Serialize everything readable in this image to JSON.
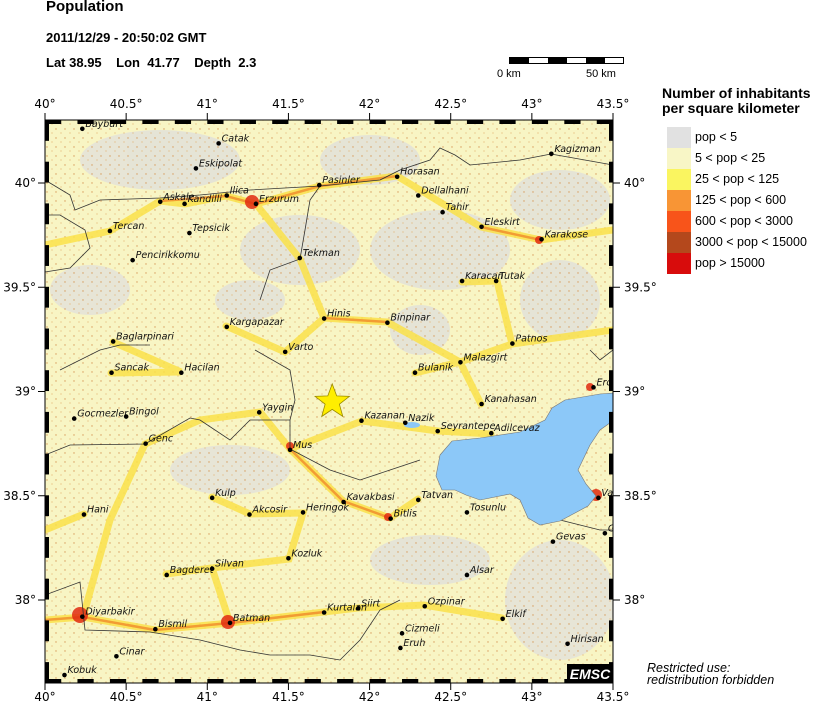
{
  "header": {
    "title": "Population",
    "datetime": "2011/12/29 - 20:50:02 GMT",
    "lat_label": "Lat",
    "lat": "38.95",
    "lon_label": "Lon",
    "lon": "41.77",
    "depth_label": "Depth",
    "depth": "2.3"
  },
  "scale_bar": {
    "start_label": "0 km",
    "end_label": "50 km"
  },
  "map": {
    "lon_range": [
      40,
      43.5
    ],
    "lat_range": [
      37.6,
      40.3
    ],
    "lon_ticks": [
      {
        "value": 40,
        "label": "40°"
      },
      {
        "value": 40.5,
        "label": "40.5°"
      },
      {
        "value": 41,
        "label": "41°"
      },
      {
        "value": 41.5,
        "label": "41.5°"
      },
      {
        "value": 42,
        "label": "42°"
      },
      {
        "value": 42.5,
        "label": "42.5°"
      },
      {
        "value": 43,
        "label": "43°"
      },
      {
        "value": 43.5,
        "label": "43.5°"
      }
    ],
    "lat_ticks": [
      {
        "value": 40,
        "label": "40°"
      },
      {
        "value": 39.5,
        "label": "39.5°"
      },
      {
        "value": 39,
        "label": "39°"
      },
      {
        "value": 38.5,
        "label": "38.5°"
      },
      {
        "value": 38,
        "label": "38°"
      }
    ],
    "epicenter": {
      "lon": 41.77,
      "lat": 38.95,
      "icon": "star-icon",
      "color": "#ffee00"
    },
    "water_color": "#8cc8f8",
    "cities": [
      {
        "name": "Bayburt",
        "lon": 40.23,
        "lat": 40.26
      },
      {
        "name": "Catak",
        "lon": 41.07,
        "lat": 40.19
      },
      {
        "name": "Eskipolat",
        "lon": 40.93,
        "lat": 40.07
      },
      {
        "name": "Askale",
        "lon": 40.71,
        "lat": 39.91
      },
      {
        "name": "Kandilli",
        "lon": 40.86,
        "lat": 39.9
      },
      {
        "name": "Ilica",
        "lon": 41.12,
        "lat": 39.94
      },
      {
        "name": "Erzurum",
        "lon": 41.3,
        "lat": 39.9
      },
      {
        "name": "Pasinler",
        "lon": 41.69,
        "lat": 39.99
      },
      {
        "name": "Horasan",
        "lon": 42.17,
        "lat": 40.03
      },
      {
        "name": "Dellalhani",
        "lon": 42.3,
        "lat": 39.94
      },
      {
        "name": "Tahir",
        "lon": 42.45,
        "lat": 39.86
      },
      {
        "name": "Eleskirt",
        "lon": 42.69,
        "lat": 39.79
      },
      {
        "name": "Karakose",
        "lon": 43.06,
        "lat": 39.73
      },
      {
        "name": "Kagizman",
        "lon": 43.12,
        "lat": 40.14
      },
      {
        "name": "Tercan",
        "lon": 40.4,
        "lat": 39.77
      },
      {
        "name": "Tepsicik",
        "lon": 40.89,
        "lat": 39.76
      },
      {
        "name": "Pencirikkomu",
        "lon": 40.54,
        "lat": 39.63
      },
      {
        "name": "Tekman",
        "lon": 41.57,
        "lat": 39.64
      },
      {
        "name": "Karacan",
        "lon": 42.57,
        "lat": 39.53
      },
      {
        "name": "Tutak",
        "lon": 42.78,
        "lat": 39.53
      },
      {
        "name": "Hinis",
        "lon": 41.72,
        "lat": 39.35
      },
      {
        "name": "Binpinar",
        "lon": 42.11,
        "lat": 39.33
      },
      {
        "name": "Patnos",
        "lon": 42.88,
        "lat": 39.23
      },
      {
        "name": "Malazgirt",
        "lon": 42.56,
        "lat": 39.14
      },
      {
        "name": "Kargapazar",
        "lon": 41.12,
        "lat": 39.31
      },
      {
        "name": "Baglarpinari",
        "lon": 40.42,
        "lat": 39.24
      },
      {
        "name": "Varto",
        "lon": 41.48,
        "lat": 39.19
      },
      {
        "name": "Sancak",
        "lon": 40.41,
        "lat": 39.09
      },
      {
        "name": "Hacilan",
        "lon": 40.84,
        "lat": 39.09
      },
      {
        "name": "Bulanik",
        "lon": 42.28,
        "lat": 39.09
      },
      {
        "name": "Ercis",
        "lon": 43.38,
        "lat": 39.02
      },
      {
        "name": "Kanahasan",
        "lon": 42.69,
        "lat": 38.94
      },
      {
        "name": "Yaygin",
        "lon": 41.32,
        "lat": 38.9
      },
      {
        "name": "Gocmezler",
        "lon": 40.18,
        "lat": 38.87
      },
      {
        "name": "Bingol",
        "lon": 40.5,
        "lat": 38.88
      },
      {
        "name": "Genc",
        "lon": 40.62,
        "lat": 38.75
      },
      {
        "name": "Mus",
        "lon": 41.51,
        "lat": 38.72
      },
      {
        "name": "Kazanan",
        "lon": 41.95,
        "lat": 38.86
      },
      {
        "name": "Nazik",
        "lon": 42.22,
        "lat": 38.85
      },
      {
        "name": "Seyrantepe",
        "lon": 42.42,
        "lat": 38.81
      },
      {
        "name": "Adilcevaz",
        "lon": 42.75,
        "lat": 38.8
      },
      {
        "name": "Van",
        "lon": 43.41,
        "lat": 38.49
      },
      {
        "name": "Kulp",
        "lon": 41.03,
        "lat": 38.49
      },
      {
        "name": "Hani",
        "lon": 40.24,
        "lat": 38.41
      },
      {
        "name": "Akcosir",
        "lon": 41.26,
        "lat": 38.41
      },
      {
        "name": "Heringok",
        "lon": 41.59,
        "lat": 38.42
      },
      {
        "name": "Kavakbasi",
        "lon": 41.84,
        "lat": 38.47
      },
      {
        "name": "Tatvan",
        "lon": 42.3,
        "lat": 38.48
      },
      {
        "name": "Bitlis",
        "lon": 42.13,
        "lat": 38.39
      },
      {
        "name": "Tosunlu",
        "lon": 42.6,
        "lat": 38.42
      },
      {
        "name": "Gevas",
        "lon": 43.13,
        "lat": 38.28
      },
      {
        "name": "G",
        "lon": 43.45,
        "lat": 38.32
      },
      {
        "name": "Kozluk",
        "lon": 41.5,
        "lat": 38.2
      },
      {
        "name": "Bagderet",
        "lon": 40.75,
        "lat": 38.12
      },
      {
        "name": "Silvan",
        "lon": 41.03,
        "lat": 38.15
      },
      {
        "name": "Alsar",
        "lon": 42.6,
        "lat": 38.12
      },
      {
        "name": "Diyarbakir",
        "lon": 40.23,
        "lat": 37.92
      },
      {
        "name": "Bismil",
        "lon": 40.68,
        "lat": 37.86
      },
      {
        "name": "Batman",
        "lon": 41.14,
        "lat": 37.89
      },
      {
        "name": "Kurtalan",
        "lon": 41.72,
        "lat": 37.94
      },
      {
        "name": "Siirt",
        "lon": 41.93,
        "lat": 37.96
      },
      {
        "name": "Ozpinar",
        "lon": 42.34,
        "lat": 37.97
      },
      {
        "name": "Cizmeli",
        "lon": 42.2,
        "lat": 37.84
      },
      {
        "name": "Elkif",
        "lon": 42.82,
        "lat": 37.91
      },
      {
        "name": "Eruh",
        "lon": 42.19,
        "lat": 37.77
      },
      {
        "name": "Hirisan",
        "lon": 43.22,
        "lat": 37.79
      },
      {
        "name": "Cinar",
        "lon": 40.44,
        "lat": 37.73
      },
      {
        "name": "Kobuk",
        "lon": 40.12,
        "lat": 37.64
      }
    ]
  },
  "legend": {
    "title_line1": "Number of inhabitants",
    "title_line2": "per square kilometer",
    "items": [
      {
        "label": "pop < 5",
        "color": "#e1e1e1"
      },
      {
        "label": "5 < pop < 25",
        "color": "#f8f6c6"
      },
      {
        "label": "25 < pop < 125",
        "color": "#faf560"
      },
      {
        "label": "125 < pop < 600",
        "color": "#f89535"
      },
      {
        "label": "600 < pop < 3000",
        "color": "#f8541a"
      },
      {
        "label": "3000 < pop < 15000",
        "color": "#b4481c"
      },
      {
        "label": "pop > 15000",
        "color": "#d80c0c"
      }
    ]
  },
  "footer": {
    "logo": "EMSC",
    "restricted_line1": "Restricted use:",
    "restricted_line2": "redistribution forbidden"
  }
}
